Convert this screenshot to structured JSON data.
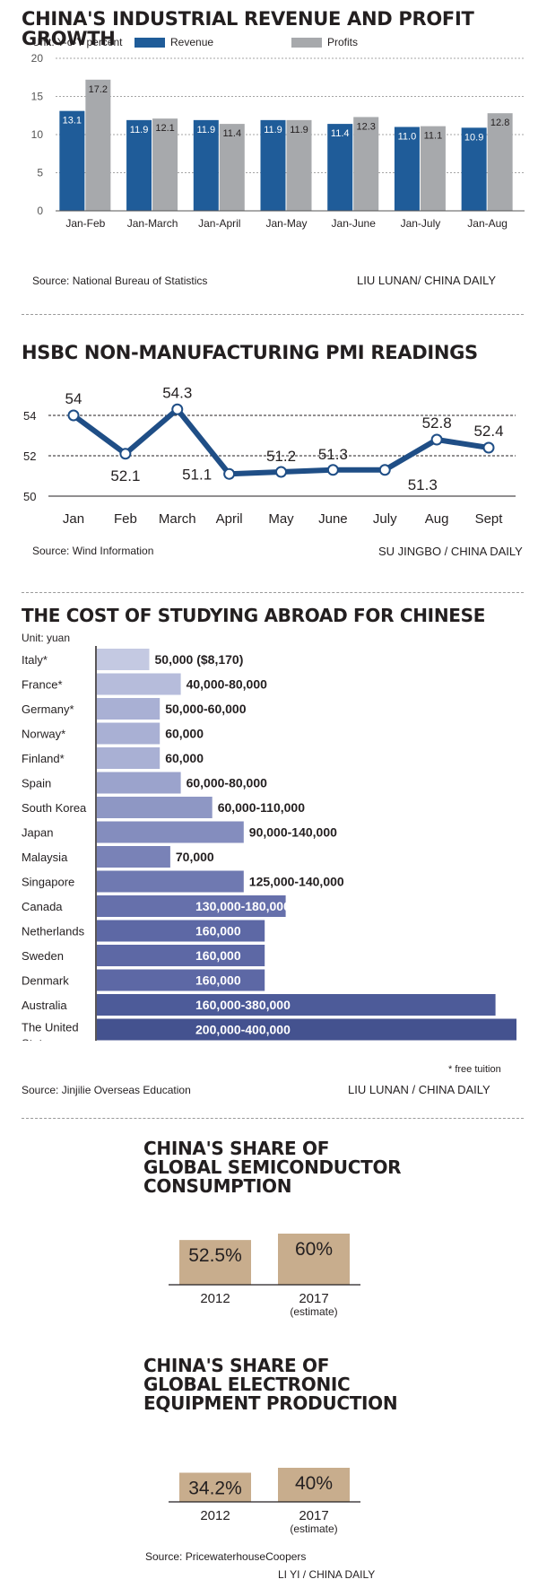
{
  "revenue_chart": {
    "title": "CHINA'S INDUSTRIAL REVENUE AND PROFIT GROWTH",
    "unit": "Unit: Y-o-Y percent",
    "legend": [
      {
        "label": "Revenue",
        "color": "#1f5c99"
      },
      {
        "label": "Profits",
        "color": "#a7a9ac"
      }
    ],
    "source": "Source: National Bureau of Statistics",
    "credit": "LIU LUNAN/ CHINA DAILY"
  },
  "pmi_chart": {
    "title": "HSBC NON-MANUFACTURING PMI READINGS",
    "source": "Source: Wind Information",
    "credit": "SU JINGBO / CHINA DAILY"
  },
  "study_chart": {
    "title": "THE COST OF STUDYING ABROAD FOR CHINESE",
    "unit": "Unit: yuan",
    "note": "* free tuition",
    "source": "Source: Jinjilie Overseas Education",
    "credit": "LIU LUNAN / CHINA DAILY"
  },
  "semi_chart": {
    "title": "CHINA'S SHARE OF GLOBAL SEMICONDUCTOR CONSUMPTION"
  },
  "elec_chart": {
    "title": "CHINA'S SHARE OF GLOBAL ELECTRONIC EQUIPMENT PRODUCTION",
    "source": "Source: PricewaterhouseCoopers",
    "credit": "LI YI / CHINA DAILY"
  },
  "chart_data": [
    {
      "type": "bar",
      "title": "CHINA'S INDUSTRIAL REVENUE AND PROFIT GROWTH",
      "ylabel": "Unit: Y-o-Y percent",
      "ylim": [
        0,
        20
      ],
      "yticks": [
        0,
        5,
        10,
        15,
        20
      ],
      "grid": true,
      "legend": "top",
      "categories": [
        "Jan-Feb",
        "Jan-March",
        "Jan-April",
        "Jan-May",
        "Jan-June",
        "Jan-July",
        "Jan-Aug"
      ],
      "series": [
        {
          "name": "Revenue",
          "color": "#1f5c99",
          "values": [
            13.1,
            11.9,
            11.9,
            11.9,
            11.4,
            11.0,
            10.9
          ],
          "labels": [
            "13.1",
            "11.9",
            "11.9",
            "11.9",
            "11.4",
            "11.0",
            "10.9"
          ]
        },
        {
          "name": "Profits",
          "color": "#a7a9ac",
          "values": [
            17.2,
            12.1,
            11.4,
            11.9,
            12.3,
            11.1,
            12.8
          ],
          "labels": [
            "17.2",
            "12.1",
            "11.4",
            "11.9",
            "12.3",
            "11.1",
            "12.8"
          ]
        }
      ]
    },
    {
      "type": "line",
      "title": "HSBC NON-MANUFACTURING PMI READINGS",
      "ylim": [
        50,
        55
      ],
      "yticks": [
        50,
        52,
        54
      ],
      "grid": true,
      "categories": [
        "Jan",
        "Feb",
        "March",
        "April",
        "May",
        "June",
        "July",
        "Aug",
        "Sept"
      ],
      "series": [
        {
          "color": "#1f4e86",
          "values": [
            54,
            52.1,
            54.3,
            51.1,
            51.2,
            51.3,
            51.3,
            52.8,
            52.4
          ],
          "labels": [
            "54",
            "52.1",
            "54.3",
            "51.1",
            "51.2",
            "51.3",
            "51.3",
            "52.8",
            "52.4"
          ]
        }
      ]
    },
    {
      "type": "bar",
      "orientation": "horizontal",
      "title": "THE COST OF STUDYING ABROAD FOR CHINESE",
      "xlabel": "Unit: yuan",
      "xlim": [
        0,
        400000
      ],
      "categories": [
        "Italy*",
        "France*",
        "Germany*",
        "Norway*",
        "Finland*",
        "Spain",
        "South Korea",
        "Japan",
        "Malaysia",
        "Singapore",
        "Canada",
        "Netherlands",
        "Sweden",
        "Denmark",
        "Australia",
        "The United States"
      ],
      "values": [
        50000,
        80000,
        60000,
        60000,
        60000,
        80000,
        110000,
        140000,
        70000,
        140000,
        180000,
        160000,
        160000,
        160000,
        380000,
        400000
      ],
      "labels": [
        "50,000 ($8,170)",
        "40,000-80,000",
        "50,000-60,000",
        "60,000",
        "60,000",
        "60,000-80,000",
        "60,000-110,000",
        "90,000-140,000",
        "70,000",
        "125,000-140,000",
        "130,000-180,000",
        "160,000",
        "160,000",
        "160,000",
        "160,000-380,000",
        "200,000-400,000"
      ],
      "colors": [
        "#c4c9e2",
        "#b6bcdb",
        "#a9b0d4",
        "#a9b0d4",
        "#a9b0d4",
        "#9ba3cc",
        "#8e97c4",
        "#848dbe",
        "#7982b7",
        "#6f79b1",
        "#6670ab",
        "#5d68a5",
        "#5d68a5",
        "#5d68a5",
        "#4d5b99",
        "#44528f"
      ]
    },
    {
      "type": "bar",
      "title": "CHINA'S SHARE OF GLOBAL SEMICONDUCTOR CONSUMPTION",
      "categories": [
        "2012",
        "2017"
      ],
      "sublabels": [
        "",
        "(estimate)"
      ],
      "values": [
        52.5,
        60
      ],
      "labels": [
        "52.5%",
        "60%"
      ],
      "color": "#c8ad8d"
    },
    {
      "type": "bar",
      "title": "CHINA'S SHARE OF GLOBAL ELECTRONIC EQUIPMENT PRODUCTION",
      "categories": [
        "2012",
        "2017"
      ],
      "sublabels": [
        "",
        "(estimate)"
      ],
      "values": [
        34.2,
        40
      ],
      "labels": [
        "34.2%",
        "40%"
      ],
      "color": "#c8ad8d"
    }
  ]
}
